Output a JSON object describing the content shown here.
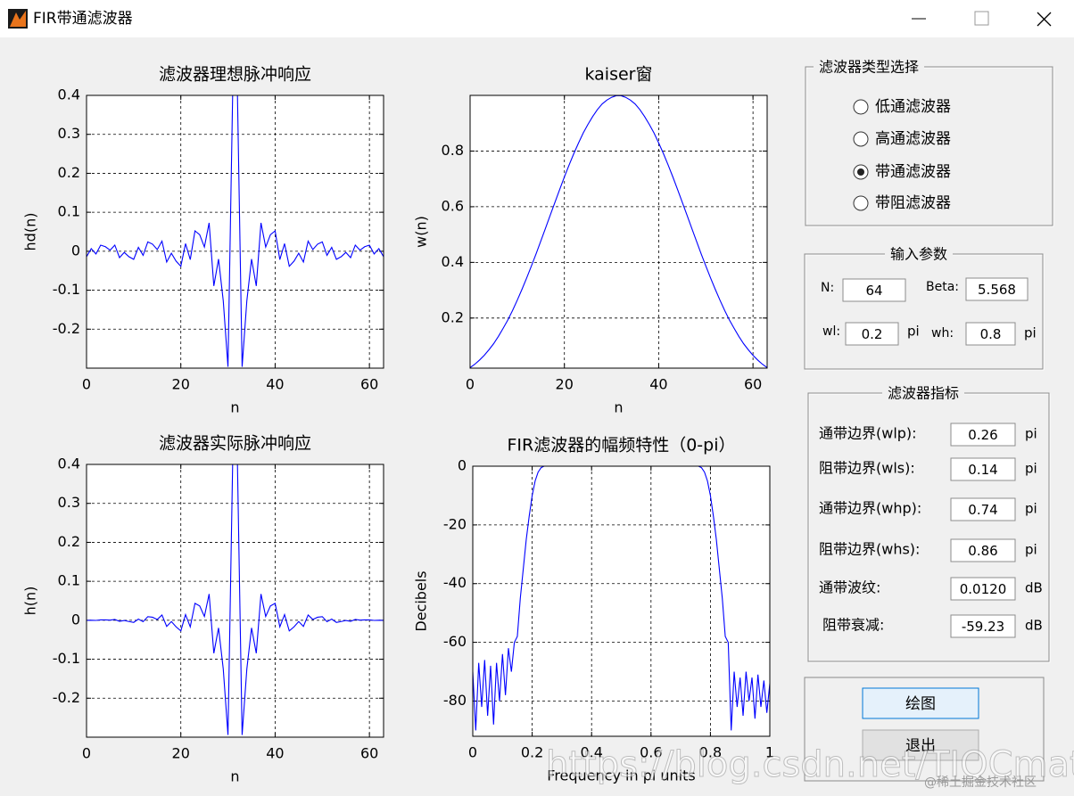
{
  "window": {
    "title": "FIR带通滤波器"
  },
  "plots": [
    {
      "type": "line",
      "title": "滤波器理想脉冲响应",
      "xlabel": "n",
      "ylabel": "hd(n)",
      "color": "#0000ff",
      "grid": true,
      "xlim": [
        0,
        63
      ],
      "ylim": [
        -0.3,
        0.4
      ],
      "xticks": [
        0,
        20,
        40,
        60
      ],
      "yticks": [
        -0.2,
        -0.1,
        0,
        0.1,
        0.2,
        0.3,
        0.4
      ],
      "x": [
        0,
        1,
        2,
        3,
        4,
        5,
        6,
        7,
        8,
        9,
        10,
        11,
        12,
        13,
        14,
        15,
        16,
        17,
        18,
        19,
        20,
        21,
        22,
        23,
        24,
        25,
        26,
        27,
        28,
        29,
        30,
        31,
        32,
        33,
        34,
        35,
        36,
        37,
        38,
        39,
        40,
        41,
        42,
        43,
        44,
        45,
        46,
        47,
        48,
        49,
        50,
        51,
        52,
        53,
        54,
        55,
        56,
        57,
        58,
        59,
        60,
        61,
        62,
        63
      ],
      "values": [
        -0.0141,
        0.0067,
        -0.0069,
        0.0156,
        0.0116,
        0.0027,
        0.0157,
        -0.0164,
        -0.003,
        -0.0141,
        -0.0207,
        0.01,
        -0.0105,
        0.024,
        0.0182,
        0.0043,
        0.0259,
        -0.0277,
        -0.0052,
        -0.0255,
        -0.0387,
        0.0195,
        -0.0215,
        0.0523,
        0.0424,
        0.0108,
        0.0729,
        -0.0891,
        -0.0201,
        -0.1273,
        -0.2964,
        0.4088,
        0.4088,
        -0.2964,
        -0.1273,
        -0.0201,
        -0.0891,
        0.0729,
        0.0108,
        0.0424,
        0.0523,
        -0.0215,
        0.0195,
        -0.0387,
        -0.0255,
        -0.0052,
        -0.0277,
        0.0259,
        0.0043,
        0.0182,
        0.024,
        -0.0105,
        0.01,
        -0.0207,
        -0.0141,
        -0.003,
        -0.0164,
        0.0157,
        0.0027,
        0.0116,
        0.0156,
        -0.0069,
        0.0067,
        -0.0141
      ]
    },
    {
      "type": "line",
      "title": "kaiser窗",
      "xlabel": "n",
      "ylabel": "w(n)",
      "color": "#0000ff",
      "grid": true,
      "xlim": [
        0,
        63
      ],
      "ylim": [
        0.02,
        1
      ],
      "xticks": [
        0,
        20,
        40,
        60
      ],
      "yticks": [
        0.2,
        0.4,
        0.6,
        0.8
      ],
      "x": [
        0,
        1,
        2,
        3,
        4,
        5,
        6,
        7,
        8,
        9,
        10,
        11,
        12,
        13,
        14,
        15,
        16,
        17,
        18,
        19,
        20,
        21,
        22,
        23,
        24,
        25,
        26,
        27,
        28,
        29,
        30,
        31,
        32,
        33,
        34,
        35,
        36,
        37,
        38,
        39,
        40,
        41,
        42,
        43,
        44,
        45,
        46,
        47,
        48,
        49,
        50,
        51,
        52,
        53,
        54,
        55,
        56,
        57,
        58,
        59,
        60,
        61,
        62,
        63
      ],
      "values": [
        0.022,
        0.034,
        0.049,
        0.066,
        0.086,
        0.108,
        0.134,
        0.163,
        0.193,
        0.227,
        0.264,
        0.303,
        0.344,
        0.387,
        0.431,
        0.477,
        0.523,
        0.57,
        0.616,
        0.662,
        0.707,
        0.75,
        0.791,
        0.829,
        0.865,
        0.896,
        0.924,
        0.949,
        0.969,
        0.983,
        0.993,
        0.999,
        0.999,
        0.993,
        0.983,
        0.969,
        0.949,
        0.924,
        0.896,
        0.865,
        0.829,
        0.791,
        0.75,
        0.707,
        0.662,
        0.616,
        0.57,
        0.523,
        0.477,
        0.431,
        0.387,
        0.344,
        0.303,
        0.264,
        0.227,
        0.193,
        0.163,
        0.134,
        0.108,
        0.086,
        0.066,
        0.049,
        0.034,
        0.022
      ]
    },
    {
      "type": "line",
      "title": "滤波器实际脉冲响应",
      "xlabel": "n",
      "ylabel": "h(n)",
      "color": "#0000ff",
      "grid": true,
      "xlim": [
        0,
        63
      ],
      "ylim": [
        -0.3,
        0.4
      ],
      "xticks": [
        0,
        20,
        40,
        60
      ],
      "yticks": [
        -0.2,
        -0.1,
        0,
        0.1,
        0.2,
        0.3,
        0.4
      ],
      "x": [
        0,
        1,
        2,
        3,
        4,
        5,
        6,
        7,
        8,
        9,
        10,
        11,
        12,
        13,
        14,
        15,
        16,
        17,
        18,
        19,
        20,
        21,
        22,
        23,
        24,
        25,
        26,
        27,
        28,
        29,
        30,
        31,
        32,
        33,
        34,
        35,
        36,
        37,
        38,
        39,
        40,
        41,
        42,
        43,
        44,
        45,
        46,
        47,
        48,
        49,
        50,
        51,
        52,
        53,
        54,
        55,
        56,
        57,
        58,
        59,
        60,
        61,
        62,
        63
      ],
      "values": [
        -0.0003,
        0.0002,
        -0.0003,
        0.001,
        0.001,
        0.0003,
        0.0021,
        -0.0027,
        -0.0006,
        -0.0032,
        -0.0055,
        0.003,
        -0.0036,
        0.0093,
        0.0078,
        0.0021,
        0.0135,
        -0.0158,
        -0.0032,
        -0.0169,
        -0.0274,
        0.0146,
        -0.017,
        0.0434,
        0.0367,
        0.0097,
        0.0674,
        -0.0846,
        -0.0195,
        -0.1251,
        -0.2943,
        0.4084,
        0.4084,
        -0.2943,
        -0.1251,
        -0.0195,
        -0.0846,
        0.0674,
        0.0097,
        0.0367,
        0.0434,
        -0.017,
        0.0146,
        -0.0274,
        -0.0169,
        -0.0032,
        -0.0158,
        0.0135,
        0.0021,
        0.0078,
        0.0093,
        -0.0036,
        0.003,
        -0.0055,
        -0.0032,
        -0.0006,
        -0.0027,
        0.0021,
        0.0003,
        0.001,
        0.001,
        -0.0003,
        0.0002,
        -0.0003
      ]
    },
    {
      "type": "line",
      "title": "FIR滤波器的幅频特性（0-pi）",
      "xlabel": "Frequency in pi units",
      "ylabel": "Decibels",
      "color": "#0000ff",
      "grid": true,
      "xlim": [
        0,
        1
      ],
      "ylim": [
        -92,
        0
      ],
      "xticks": [
        0,
        0.2,
        0.4,
        0.6,
        0.8,
        1
      ],
      "yticks": [
        -80,
        -60,
        -40,
        -20,
        0
      ],
      "x": [
        0,
        0.01,
        0.02,
        0.03,
        0.04,
        0.05,
        0.06,
        0.07,
        0.08,
        0.09,
        0.1,
        0.11,
        0.12,
        0.13,
        0.14,
        0.15,
        0.16,
        0.17,
        0.18,
        0.19,
        0.2,
        0.21,
        0.22,
        0.23,
        0.24,
        0.3,
        0.5,
        0.7,
        0.76,
        0.77,
        0.78,
        0.79,
        0.8,
        0.81,
        0.82,
        0.83,
        0.84,
        0.85,
        0.86,
        0.87,
        0.88,
        0.89,
        0.9,
        0.91,
        0.92,
        0.93,
        0.94,
        0.95,
        0.96,
        0.97,
        0.98,
        0.99,
        1
      ],
      "values": [
        -70,
        -90,
        -67,
        -82,
        -66,
        -85,
        -68,
        -88,
        -67,
        -80,
        -64,
        -78,
        -62,
        -70,
        -60,
        -58,
        -45,
        -35,
        -25,
        -17,
        -10,
        -5,
        -2,
        -0.5,
        0,
        0,
        0,
        0,
        0,
        -0.5,
        -2,
        -5,
        -10,
        -17,
        -25,
        -35,
        -45,
        -58,
        -60,
        -90,
        -70,
        -82,
        -72,
        -85,
        -70,
        -80,
        -72,
        -86,
        -71,
        -82,
        -73,
        -84,
        -74
      ]
    }
  ],
  "filter_type": {
    "title": "滤波器类型选择",
    "options": [
      "低通滤波器",
      "高通滤波器",
      "带通滤波器",
      "带阻滤波器"
    ],
    "selected": 2
  },
  "params": {
    "title": "输入参数",
    "fields": [
      {
        "label": "N:",
        "value": "64"
      },
      {
        "label": "Beta:",
        "value": "5.568"
      },
      {
        "label": "wl:",
        "value": "0.2",
        "unit": "pi"
      },
      {
        "label": "wh:",
        "value": "0.8",
        "unit": "pi"
      }
    ]
  },
  "specs": {
    "title": "滤波器指标",
    "rows": [
      {
        "label": "通带边界(wlp):",
        "value": "0.26",
        "unit": "pi"
      },
      {
        "label": "阻带边界(wls):",
        "value": "0.14",
        "unit": "pi"
      },
      {
        "label": "通带边界(whp):",
        "value": "0.74",
        "unit": "pi"
      },
      {
        "label": "阻带边界(whs):",
        "value": "0.86",
        "unit": "pi"
      },
      {
        "label": "通带波纹:",
        "value": "0.0120",
        "unit": "dB"
      },
      {
        "label": "阻带衰减:",
        "value": "-59.23",
        "unit": "dB"
      }
    ]
  },
  "buttons": [
    "绘图",
    "退出"
  ],
  "watermark": {
    "url": "https://blog.csdn.net/TIQCmatlab",
    "credit": "@稀土掘金技术社区"
  }
}
